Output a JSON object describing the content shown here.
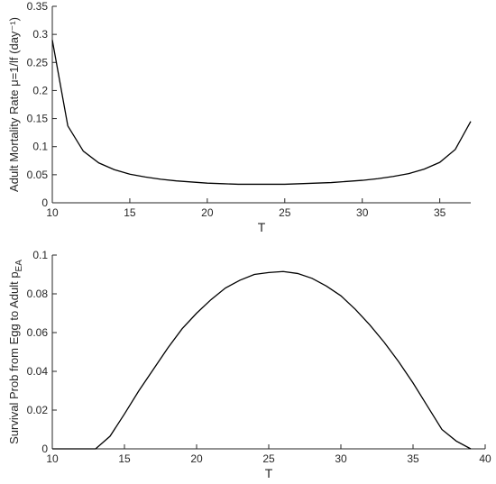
{
  "chart_data": [
    {
      "type": "line",
      "x_label": "T",
      "y_label": "Adult Mortality Rate μ=1/lf (day⁻¹)",
      "x": [
        10,
        11,
        12,
        13,
        14,
        15,
        16,
        17,
        18,
        19,
        20,
        21,
        22,
        23,
        24,
        25,
        26,
        27,
        28,
        29,
        30,
        31,
        32,
        33,
        34,
        35,
        36,
        37
      ],
      "series": [
        {
          "color": "#000000",
          "values": [
            0.29,
            0.137,
            0.092,
            0.071,
            0.059,
            0.051,
            0.046,
            0.042,
            0.039,
            0.037,
            0.035,
            0.034,
            0.033,
            0.033,
            0.033,
            0.033,
            0.034,
            0.035,
            0.036,
            0.038,
            0.04,
            0.043,
            0.047,
            0.052,
            0.06,
            0.072,
            0.095,
            0.145
          ]
        }
      ],
      "x_end": 37,
      "xlim": [
        10,
        37
      ],
      "xticks": [
        10,
        15,
        20,
        25,
        30,
        35
      ],
      "ylim": [
        0,
        0.35
      ],
      "yticks": [
        0,
        0.05,
        0.1,
        0.15,
        0.2,
        0.25,
        0.3,
        0.35
      ]
    },
    {
      "type": "line",
      "x_label": "T",
      "y_label": "Survival Prob from Egg to Adult p",
      "y_label_sub": "EA",
      "x": [
        10,
        11,
        12,
        13,
        14,
        15,
        16,
        17,
        18,
        19,
        20,
        21,
        22,
        23,
        24,
        25,
        26,
        27,
        28,
        29,
        30,
        31,
        32,
        33,
        34,
        35,
        36,
        37,
        38,
        39
      ],
      "series": [
        {
          "color": "#000000",
          "values": [
            0,
            0,
            0,
            0,
            0.0065,
            0.018,
            0.03,
            0.041,
            0.052,
            0.062,
            0.07,
            0.077,
            0.083,
            0.087,
            0.09,
            0.091,
            0.0915,
            0.0905,
            0.088,
            0.084,
            0.079,
            0.072,
            0.064,
            0.055,
            0.045,
            0.034,
            0.022,
            0.01,
            0.004,
            0
          ]
        }
      ],
      "xlim": [
        10,
        40
      ],
      "xticks": [
        10,
        15,
        20,
        25,
        30,
        35,
        40
      ],
      "ylim": [
        0,
        0.1
      ],
      "yticks": [
        0,
        0.02,
        0.04,
        0.06,
        0.08,
        0.1
      ]
    }
  ]
}
